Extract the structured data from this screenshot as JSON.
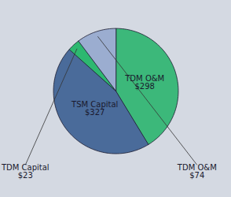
{
  "chart_data": {
    "type": "pie",
    "categories": [
      "TDM O&M",
      "TSM Capital",
      "TDM Capital",
      "TDM O&M"
    ],
    "values": [
      298,
      327,
      23,
      74
    ],
    "value_labels": [
      "$298",
      "$327",
      "$23",
      "$74"
    ],
    "colors": [
      "#3cb87a",
      "#4a6b9a",
      "#2db870",
      "#9badd0"
    ],
    "data_labels": true
  }
}
